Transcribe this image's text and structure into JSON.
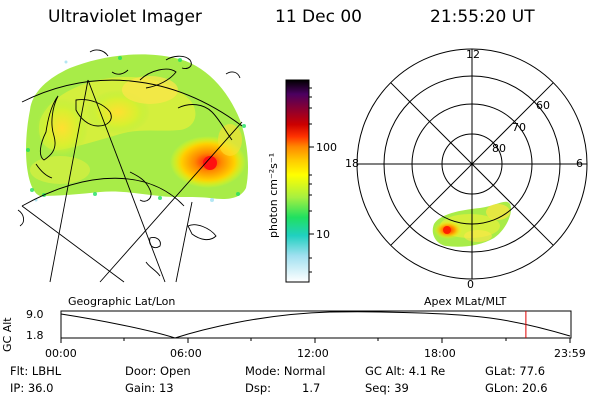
{
  "header": {
    "title": "Ultraviolet Imager",
    "date": "11 Dec 00",
    "time": "21:55:20 UT"
  },
  "geo_panel": {
    "caption": "Geographic Lat/Lon"
  },
  "colorbar": {
    "unit_label": "photon cm⁻²s⁻¹",
    "ticks": [
      "100",
      "10"
    ],
    "colors": [
      "#000000",
      "#4b0060",
      "#cc0000",
      "#ff3300",
      "#ff8800",
      "#ffcc00",
      "#ffff00",
      "#a8f040",
      "#20e060",
      "#20d0c0",
      "#a0e0f0",
      "#ffffff"
    ]
  },
  "polar_panel": {
    "caption": "Apex MLat/MLT",
    "mlt_labels": {
      "top": "12",
      "left": "18",
      "right": "6",
      "bottom": "0"
    },
    "lat_labels": [
      "60",
      "70",
      "80"
    ]
  },
  "altitude_strip": {
    "axis_label": "GC Alt",
    "y_ticks": [
      "9.0",
      "1.8"
    ],
    "x_ticks": [
      "00:00",
      "06:00",
      "12:00",
      "18:00",
      "23:59"
    ],
    "current_marker_hour": 21.92
  },
  "footer": {
    "row1": {
      "filter": "Flt: LBHL",
      "door": "Door: Open",
      "mode": "Mode: Normal",
      "gc_alt": "GC Alt: 4.1 Re",
      "glat": "GLat: 77.6"
    },
    "row2": {
      "ip": "IP: 36.0",
      "gain": "Gain: 13",
      "dsp": "Dsp:",
      "dsp_value": "1.7",
      "seq": "Seq: 39",
      "glon": "GLon: 20.6"
    }
  }
}
